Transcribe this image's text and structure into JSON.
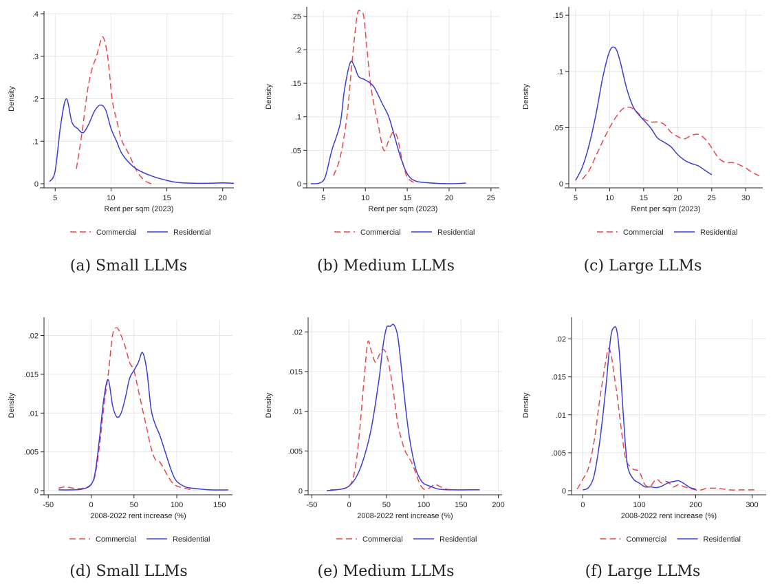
{
  "colors": {
    "commercial": "#e8474c",
    "residential": "#3b3bd6",
    "grid": "#e6e6e6",
    "axis": "#222222"
  },
  "chart_data": [
    {
      "type": "line",
      "caption": "(a) Small LLMs",
      "xlabel": "Rent per sqm (2023)",
      "ylabel": "Density",
      "xlim": [
        4,
        21
      ],
      "ylim": [
        0,
        0.4
      ],
      "xticks": [
        5,
        10,
        15,
        20
      ],
      "xtick_labels": [
        "5",
        "10",
        "15",
        "20"
      ],
      "yticks": [
        0,
        0.1,
        0.2,
        0.3,
        0.4
      ],
      "ytick_labels": [
        "0",
        ".1",
        ".2",
        ".3",
        ".4"
      ],
      "grid": true,
      "legend": "bottom",
      "series": [
        {
          "name": "Commercial",
          "style": "dashed",
          "x": [
            6.9,
            7.4,
            7.9,
            8.3,
            8.7,
            9.0,
            9.3,
            9.7,
            10.1,
            10.5,
            11.0,
            11.6,
            12.3,
            13.0,
            13.6
          ],
          "y": [
            0.035,
            0.12,
            0.22,
            0.27,
            0.3,
            0.33,
            0.345,
            0.3,
            0.2,
            0.15,
            0.1,
            0.07,
            0.03,
            0.008,
            0.0
          ]
        },
        {
          "name": "Residential",
          "style": "solid",
          "x": [
            4.5,
            5.0,
            5.5,
            6.0,
            6.5,
            7.0,
            7.5,
            8.0,
            8.5,
            9.0,
            9.5,
            10.0,
            10.5,
            11.0,
            12.0,
            13.0,
            14.0,
            15.0,
            16.0,
            18.0,
            20.0,
            21.0
          ],
          "y": [
            0.005,
            0.03,
            0.14,
            0.2,
            0.145,
            0.13,
            0.12,
            0.14,
            0.17,
            0.185,
            0.175,
            0.13,
            0.1,
            0.07,
            0.04,
            0.025,
            0.015,
            0.008,
            0.003,
            0.001,
            0.002,
            0.001
          ]
        }
      ]
    },
    {
      "type": "line",
      "caption": "(b) Medium LLMs",
      "xlabel": "Rent per sqm (2023)",
      "ylabel": "Density",
      "xlim": [
        3,
        26
      ],
      "ylim": [
        0,
        0.26
      ],
      "xticks": [
        5,
        10,
        15,
        20,
        25
      ],
      "xtick_labels": [
        "5",
        "10",
        "15",
        "20",
        "25"
      ],
      "yticks": [
        0,
        0.05,
        0.1,
        0.15,
        0.2,
        0.25
      ],
      "ytick_labels": [
        "0",
        ".05",
        ".1",
        ".15",
        ".2",
        ".25"
      ],
      "grid": true,
      "legend": "bottom",
      "series": [
        {
          "name": "Commercial",
          "style": "dashed",
          "x": [
            6.2,
            7.0,
            7.8,
            8.4,
            9.0,
            9.4,
            9.8,
            10.2,
            10.6,
            11.0,
            11.5,
            12.2,
            12.8,
            13.3,
            13.8,
            14.4,
            15.0,
            15.8
          ],
          "y": [
            0.012,
            0.04,
            0.1,
            0.18,
            0.25,
            0.258,
            0.25,
            0.2,
            0.15,
            0.12,
            0.09,
            0.05,
            0.065,
            0.077,
            0.07,
            0.035,
            0.01,
            0.002
          ]
        },
        {
          "name": "Residential",
          "style": "solid",
          "x": [
            3.5,
            4.5,
            5.2,
            6.0,
            7.0,
            7.5,
            8.2,
            8.7,
            9.2,
            10.0,
            11.0,
            12.0,
            12.8,
            13.5,
            14.2,
            15.0,
            16.0,
            18.0,
            20.0,
            22.0
          ],
          "y": [
            0.0,
            0.001,
            0.01,
            0.05,
            0.09,
            0.14,
            0.181,
            0.175,
            0.16,
            0.155,
            0.145,
            0.12,
            0.1,
            0.07,
            0.04,
            0.015,
            0.004,
            0.001,
            0.0,
            0.001
          ]
        }
      ]
    },
    {
      "type": "line",
      "caption": "(c) Large LLMs",
      "xlabel": "Rent per sqm (2023)",
      "ylabel": "Density",
      "xlim": [
        4,
        32.5
      ],
      "ylim": [
        0,
        0.155
      ],
      "xticks": [
        5,
        10,
        15,
        20,
        25,
        30
      ],
      "xtick_labels": [
        "5",
        "10",
        "15",
        "20",
        "25",
        "30"
      ],
      "yticks": [
        0,
        0.05,
        0.1,
        0.15
      ],
      "ytick_labels": [
        "0",
        ".05",
        ".1",
        ".15"
      ],
      "grid": true,
      "legend": "bottom",
      "series": [
        {
          "name": "Commercial",
          "style": "dashed",
          "x": [
            6.0,
            7.0,
            8.0,
            9.0,
            10.0,
            11.0,
            12.0,
            13.0,
            14.0,
            15.0,
            16.0,
            17.0,
            18.0,
            19.0,
            20.0,
            21.0,
            22.0,
            23.0,
            24.0,
            25.0,
            26.0,
            27.0,
            28.0,
            29.0,
            30.0,
            31.0,
            32.0
          ],
          "y": [
            0.004,
            0.012,
            0.025,
            0.038,
            0.05,
            0.06,
            0.067,
            0.068,
            0.064,
            0.058,
            0.055,
            0.055,
            0.053,
            0.046,
            0.042,
            0.04,
            0.043,
            0.044,
            0.04,
            0.032,
            0.023,
            0.019,
            0.019,
            0.017,
            0.014,
            0.01,
            0.007
          ]
        },
        {
          "name": "Residential",
          "style": "solid",
          "x": [
            5.0,
            6.0,
            7.0,
            8.0,
            9.0,
            10.0,
            10.8,
            11.5,
            12.5,
            13.5,
            14.5,
            16.0,
            17.0,
            18.0,
            19.0,
            20.0,
            21.0,
            22.0,
            23.0,
            24.0,
            25.0
          ],
          "y": [
            0.003,
            0.015,
            0.035,
            0.062,
            0.095,
            0.118,
            0.121,
            0.11,
            0.085,
            0.068,
            0.06,
            0.05,
            0.041,
            0.037,
            0.033,
            0.026,
            0.021,
            0.018,
            0.016,
            0.012,
            0.008
          ]
        }
      ]
    },
    {
      "type": "line",
      "caption": "(d) Small LLMs",
      "xlabel": "2008-2022 rent increase (%)",
      "ylabel": "Density",
      "xlim": [
        -55,
        165
      ],
      "ylim": [
        0,
        0.022
      ],
      "xticks": [
        -50,
        0,
        50,
        100,
        150
      ],
      "xtick_labels": [
        "-50",
        "0",
        "50",
        "100",
        "150"
      ],
      "yticks": [
        0,
        0.005,
        0.01,
        0.015,
        0.02
      ],
      "ytick_labels": [
        "0",
        ".005",
        ".01",
        ".015",
        ".02"
      ],
      "grid": true,
      "legend": "bottom",
      "series": [
        {
          "name": "Commercial",
          "style": "dashed",
          "x": [
            -38,
            -30,
            -20,
            -10,
            0,
            5,
            10,
            15,
            20,
            25,
            30,
            35,
            40,
            45,
            50,
            55,
            60,
            65,
            70,
            75,
            80,
            85,
            90,
            95,
            100,
            110,
            120
          ],
          "y": [
            0.0003,
            0.0005,
            0.0003,
            0.0003,
            0.0008,
            0.0022,
            0.006,
            0.011,
            0.015,
            0.02,
            0.021,
            0.02,
            0.0185,
            0.0165,
            0.0155,
            0.013,
            0.0105,
            0.008,
            0.0055,
            0.004,
            0.0037,
            0.0028,
            0.0018,
            0.001,
            0.0006,
            0.0003,
            0.0
          ]
        },
        {
          "name": "Residential",
          "style": "solid",
          "x": [
            -38,
            -25,
            -10,
            0,
            5,
            10,
            15,
            20,
            25,
            30,
            35,
            40,
            45,
            50,
            55,
            60,
            65,
            70,
            75,
            80,
            85,
            90,
            95,
            100,
            110,
            120,
            140,
            160
          ],
          "y": [
            0.0001,
            0.0001,
            0.0002,
            0.0008,
            0.0025,
            0.007,
            0.012,
            0.0143,
            0.011,
            0.0095,
            0.01,
            0.012,
            0.0145,
            0.0155,
            0.0165,
            0.0178,
            0.0155,
            0.0105,
            0.0085,
            0.0072,
            0.0055,
            0.0038,
            0.0022,
            0.0012,
            0.0005,
            0.0003,
            0.0001,
            0.0001
          ]
        }
      ]
    },
    {
      "type": "line",
      "caption": "(e) Medium LLMs",
      "xlabel": "2008-2022 rent increase (%)",
      "ylabel": "Density",
      "xlim": [
        -55,
        205
      ],
      "ylim": [
        0,
        0.0215
      ],
      "xticks": [
        -50,
        0,
        50,
        100,
        150,
        200
      ],
      "xtick_labels": [
        "-50",
        "0",
        "50",
        "100",
        "150",
        "200"
      ],
      "yticks": [
        0,
        0.005,
        0.01,
        0.015,
        0.02
      ],
      "ytick_labels": [
        "0",
        ".005",
        ".01",
        ".015",
        ".02"
      ],
      "grid": true,
      "legend": "bottom",
      "series": [
        {
          "name": "Commercial",
          "style": "dashed",
          "x": [
            -25,
            -10,
            0,
            5,
            10,
            15,
            20,
            25,
            30,
            35,
            40,
            45,
            50,
            55,
            60,
            65,
            70,
            75,
            80,
            85,
            90,
            95,
            100,
            105,
            110,
            115,
            120,
            130,
            140
          ],
          "y": [
            0.0001,
            0.0002,
            0.0006,
            0.0015,
            0.004,
            0.0085,
            0.014,
            0.0187,
            0.0175,
            0.0162,
            0.017,
            0.0178,
            0.0172,
            0.015,
            0.012,
            0.0085,
            0.0065,
            0.005,
            0.0042,
            0.0033,
            0.002,
            0.0008,
            0.0002,
            0.0002,
            0.0005,
            0.0008,
            0.0006,
            0.0002,
            0.0001
          ]
        },
        {
          "name": "Residential",
          "style": "solid",
          "x": [
            -30,
            -10,
            0,
            10,
            20,
            30,
            40,
            45,
            50,
            55,
            60,
            65,
            70,
            75,
            80,
            85,
            90,
            95,
            100,
            110,
            120,
            140,
            160,
            175
          ],
          "y": [
            0.0,
            0.0002,
            0.0006,
            0.0018,
            0.0042,
            0.008,
            0.014,
            0.018,
            0.0205,
            0.0207,
            0.0209,
            0.0195,
            0.0155,
            0.011,
            0.0072,
            0.0045,
            0.0025,
            0.0015,
            0.0009,
            0.0005,
            0.0002,
            0.0001,
            0.0001,
            0.0001
          ]
        }
      ]
    },
    {
      "type": "line",
      "caption": "(f) Large LLMs",
      "xlabel": "2008-2022 rent increase (%)",
      "ylabel": "Density",
      "xlim": [
        -20,
        325
      ],
      "ylim": [
        0,
        0.0225
      ],
      "xticks": [
        0,
        100,
        200,
        300
      ],
      "xtick_labels": [
        "0",
        "100",
        "200",
        "300"
      ],
      "yticks": [
        0,
        0.005,
        0.01,
        0.015,
        0.02
      ],
      "ytick_labels": [
        "0",
        ".005",
        ".01",
        ".015",
        ".02"
      ],
      "grid": true,
      "legend": "bottom",
      "series": [
        {
          "name": "Commercial",
          "style": "dashed",
          "x": [
            -10,
            0,
            10,
            20,
            30,
            40,
            45,
            50,
            55,
            60,
            65,
            70,
            75,
            80,
            90,
            100,
            110,
            120,
            130,
            140,
            150,
            160,
            170,
            180,
            190,
            200,
            210,
            220,
            240,
            260,
            280,
            300,
            310
          ],
          "y": [
            0.0002,
            0.0015,
            0.003,
            0.0065,
            0.012,
            0.0168,
            0.0187,
            0.018,
            0.0155,
            0.013,
            0.01,
            0.007,
            0.0045,
            0.0035,
            0.0028,
            0.0025,
            0.0008,
            0.0006,
            0.0015,
            0.001,
            0.0012,
            0.0005,
            0.0008,
            0.0005,
            0.0003,
            0.0001,
            0.0001,
            0.0003,
            0.0003,
            0.0001,
            0.0001,
            0.0001,
            0.0001
          ]
        },
        {
          "name": "Residential",
          "style": "solid",
          "x": [
            0,
            10,
            20,
            30,
            40,
            45,
            50,
            55,
            60,
            65,
            70,
            75,
            80,
            90,
            100,
            110,
            120,
            130,
            140,
            150,
            160,
            170,
            180,
            190,
            200
          ],
          "y": [
            0.0001,
            0.0004,
            0.002,
            0.0065,
            0.013,
            0.017,
            0.0205,
            0.0215,
            0.0212,
            0.018,
            0.012,
            0.0065,
            0.003,
            0.0015,
            0.001,
            0.0005,
            0.0005,
            0.0004,
            0.0006,
            0.001,
            0.0012,
            0.0013,
            0.0009,
            0.0004,
            0.0002
          ]
        }
      ]
    }
  ]
}
